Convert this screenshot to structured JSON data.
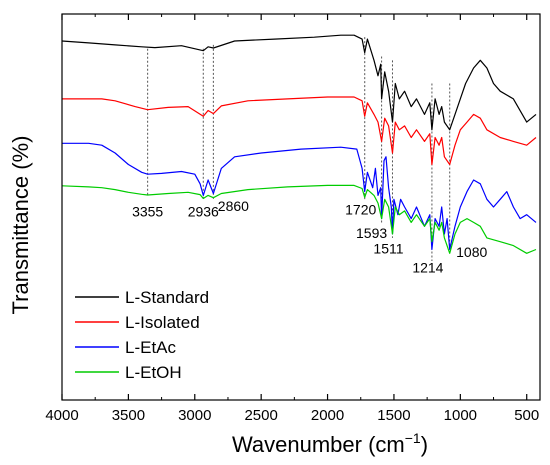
{
  "chart_data": {
    "type": "line",
    "xlabel": "Wavenumber (cm",
    "xlabel_sup": "−1",
    "xlabel_close": ")",
    "ylabel": "Transmittance (%)",
    "xlim": [
      4000,
      400
    ],
    "x_reversed": true,
    "y_ticks_shown": false,
    "x_ticks": [
      4000,
      3500,
      3000,
      2500,
      2000,
      1500,
      1000,
      500
    ],
    "x_tick_labels": [
      "4000",
      "3500",
      "3000",
      "2500",
      "2000",
      "1500",
      "1000",
      "500"
    ],
    "legend_position": "bottom-left",
    "series": [
      {
        "name": "L-Standard",
        "color": "#000000",
        "baseline": 0.93,
        "points": [
          [
            4000,
            0.93
          ],
          [
            3800,
            0.925
          ],
          [
            3600,
            0.92
          ],
          [
            3400,
            0.915
          ],
          [
            3300,
            0.913
          ],
          [
            3100,
            0.918
          ],
          [
            2936,
            0.905
          ],
          [
            2900,
            0.915
          ],
          [
            2860,
            0.912
          ],
          [
            2700,
            0.93
          ],
          [
            2400,
            0.935
          ],
          [
            2100,
            0.94
          ],
          [
            1900,
            0.945
          ],
          [
            1800,
            0.945
          ],
          [
            1740,
            0.935
          ],
          [
            1720,
            0.9
          ],
          [
            1700,
            0.935
          ],
          [
            1650,
            0.88
          ],
          [
            1620,
            0.84
          ],
          [
            1600,
            0.87
          ],
          [
            1593,
            0.78
          ],
          [
            1570,
            0.85
          ],
          [
            1540,
            0.8
          ],
          [
            1511,
            0.72
          ],
          [
            1490,
            0.82
          ],
          [
            1460,
            0.78
          ],
          [
            1420,
            0.8
          ],
          [
            1370,
            0.76
          ],
          [
            1330,
            0.78
          ],
          [
            1270,
            0.74
          ],
          [
            1230,
            0.77
          ],
          [
            1214,
            0.7
          ],
          [
            1190,
            0.78
          ],
          [
            1160,
            0.74
          ],
          [
            1140,
            0.76
          ],
          [
            1120,
            0.72
          ],
          [
            1080,
            0.7
          ],
          [
            1040,
            0.74
          ],
          [
            1000,
            0.78
          ],
          [
            960,
            0.82
          ],
          [
            900,
            0.86
          ],
          [
            850,
            0.88
          ],
          [
            800,
            0.86
          ],
          [
            750,
            0.82
          ],
          [
            700,
            0.8
          ],
          [
            600,
            0.78
          ],
          [
            500,
            0.72
          ],
          [
            430,
            0.74
          ]
        ]
      },
      {
        "name": "L-Isolated",
        "color": "#ff0000",
        "baseline": 0.78,
        "points": [
          [
            4000,
            0.78
          ],
          [
            3800,
            0.78
          ],
          [
            3700,
            0.78
          ],
          [
            3600,
            0.775
          ],
          [
            3450,
            0.76
          ],
          [
            3355,
            0.752
          ],
          [
            3200,
            0.758
          ],
          [
            3050,
            0.76
          ],
          [
            2936,
            0.735
          ],
          [
            2900,
            0.75
          ],
          [
            2860,
            0.742
          ],
          [
            2800,
            0.762
          ],
          [
            2600,
            0.775
          ],
          [
            2300,
            0.78
          ],
          [
            2000,
            0.785
          ],
          [
            1800,
            0.785
          ],
          [
            1740,
            0.775
          ],
          [
            1720,
            0.735
          ],
          [
            1700,
            0.77
          ],
          [
            1650,
            0.74
          ],
          [
            1620,
            0.72
          ],
          [
            1593,
            0.67
          ],
          [
            1570,
            0.73
          ],
          [
            1540,
            0.71
          ],
          [
            1511,
            0.64
          ],
          [
            1490,
            0.72
          ],
          [
            1460,
            0.7
          ],
          [
            1420,
            0.71
          ],
          [
            1370,
            0.68
          ],
          [
            1330,
            0.7
          ],
          [
            1270,
            0.67
          ],
          [
            1230,
            0.69
          ],
          [
            1214,
            0.61
          ],
          [
            1190,
            0.68
          ],
          [
            1160,
            0.66
          ],
          [
            1140,
            0.68
          ],
          [
            1120,
            0.63
          ],
          [
            1080,
            0.61
          ],
          [
            1040,
            0.66
          ],
          [
            1000,
            0.7
          ],
          [
            950,
            0.72
          ],
          [
            900,
            0.74
          ],
          [
            850,
            0.73
          ],
          [
            800,
            0.7
          ],
          [
            700,
            0.68
          ],
          [
            600,
            0.67
          ],
          [
            500,
            0.66
          ],
          [
            430,
            0.68
          ]
        ]
      },
      {
        "name": "L-EtAc",
        "color": "#0000ff",
        "baseline": 0.66,
        "points": [
          [
            4000,
            0.665
          ],
          [
            3800,
            0.665
          ],
          [
            3700,
            0.66
          ],
          [
            3600,
            0.64
          ],
          [
            3500,
            0.61
          ],
          [
            3400,
            0.59
          ],
          [
            3355,
            0.585
          ],
          [
            3250,
            0.587
          ],
          [
            3100,
            0.592
          ],
          [
            3000,
            0.585
          ],
          [
            2960,
            0.56
          ],
          [
            2936,
            0.53
          ],
          [
            2900,
            0.57
          ],
          [
            2860,
            0.535
          ],
          [
            2800,
            0.6
          ],
          [
            2700,
            0.63
          ],
          [
            2500,
            0.64
          ],
          [
            2200,
            0.65
          ],
          [
            1900,
            0.655
          ],
          [
            1780,
            0.65
          ],
          [
            1740,
            0.6
          ],
          [
            1720,
            0.54
          ],
          [
            1700,
            0.59
          ],
          [
            1660,
            0.55
          ],
          [
            1640,
            0.6
          ],
          [
            1620,
            0.53
          ],
          [
            1600,
            0.55
          ],
          [
            1593,
            0.47
          ],
          [
            1575,
            0.62
          ],
          [
            1560,
            0.63
          ],
          [
            1540,
            0.55
          ],
          [
            1520,
            0.5
          ],
          [
            1511,
            0.43
          ],
          [
            1500,
            0.52
          ],
          [
            1470,
            0.48
          ],
          [
            1450,
            0.52
          ],
          [
            1420,
            0.5
          ],
          [
            1370,
            0.47
          ],
          [
            1330,
            0.5
          ],
          [
            1270,
            0.45
          ],
          [
            1230,
            0.48
          ],
          [
            1214,
            0.39
          ],
          [
            1190,
            0.47
          ],
          [
            1160,
            0.45
          ],
          [
            1140,
            0.5
          ],
          [
            1120,
            0.43
          ],
          [
            1100,
            0.47
          ],
          [
            1080,
            0.39
          ],
          [
            1040,
            0.45
          ],
          [
            1000,
            0.5
          ],
          [
            950,
            0.54
          ],
          [
            900,
            0.57
          ],
          [
            850,
            0.56
          ],
          [
            800,
            0.52
          ],
          [
            750,
            0.5
          ],
          [
            700,
            0.52
          ],
          [
            650,
            0.54
          ],
          [
            600,
            0.5
          ],
          [
            550,
            0.47
          ],
          [
            500,
            0.48
          ],
          [
            430,
            0.46
          ]
        ]
      },
      {
        "name": "L-EtOH",
        "color": "#00cc00",
        "baseline": 0.55,
        "points": [
          [
            4000,
            0.555
          ],
          [
            3800,
            0.552
          ],
          [
            3700,
            0.55
          ],
          [
            3600,
            0.545
          ],
          [
            3500,
            0.538
          ],
          [
            3400,
            0.533
          ],
          [
            3355,
            0.531
          ],
          [
            3200,
            0.535
          ],
          [
            3050,
            0.538
          ],
          [
            2960,
            0.532
          ],
          [
            2936,
            0.522
          ],
          [
            2900,
            0.53
          ],
          [
            2860,
            0.524
          ],
          [
            2800,
            0.535
          ],
          [
            2600,
            0.545
          ],
          [
            2300,
            0.552
          ],
          [
            2000,
            0.556
          ],
          [
            1800,
            0.556
          ],
          [
            1740,
            0.548
          ],
          [
            1720,
            0.525
          ],
          [
            1700,
            0.545
          ],
          [
            1650,
            0.53
          ],
          [
            1620,
            0.51
          ],
          [
            1593,
            0.47
          ],
          [
            1570,
            0.52
          ],
          [
            1540,
            0.5
          ],
          [
            1511,
            0.43
          ],
          [
            1490,
            0.5
          ],
          [
            1460,
            0.48
          ],
          [
            1420,
            0.49
          ],
          [
            1370,
            0.46
          ],
          [
            1330,
            0.48
          ],
          [
            1270,
            0.45
          ],
          [
            1230,
            0.47
          ],
          [
            1214,
            0.41
          ],
          [
            1190,
            0.46
          ],
          [
            1160,
            0.44
          ],
          [
            1140,
            0.46
          ],
          [
            1120,
            0.42
          ],
          [
            1080,
            0.38
          ],
          [
            1040,
            0.43
          ],
          [
            1000,
            0.46
          ],
          [
            950,
            0.47
          ],
          [
            900,
            0.46
          ],
          [
            850,
            0.45
          ],
          [
            800,
            0.42
          ],
          [
            700,
            0.41
          ],
          [
            600,
            0.4
          ],
          [
            500,
            0.38
          ],
          [
            430,
            0.39
          ]
        ]
      }
    ],
    "reference_lines": [
      {
        "x": 3355,
        "label": "3355",
        "label_pos": "below"
      },
      {
        "x": 2936,
        "label": "2936",
        "label_pos": "below"
      },
      {
        "x": 2860,
        "label": "2860",
        "label_pos": "below"
      },
      {
        "x": 1720,
        "label": "1720",
        "label_pos": "below"
      },
      {
        "x": 1593,
        "label": "1593",
        "label_pos": "below"
      },
      {
        "x": 1511,
        "label": "1511",
        "label_pos": "below"
      },
      {
        "x": 1214,
        "label": "1214",
        "label_pos": "below"
      },
      {
        "x": 1080,
        "label": "1080",
        "label_pos": "below"
      }
    ]
  }
}
